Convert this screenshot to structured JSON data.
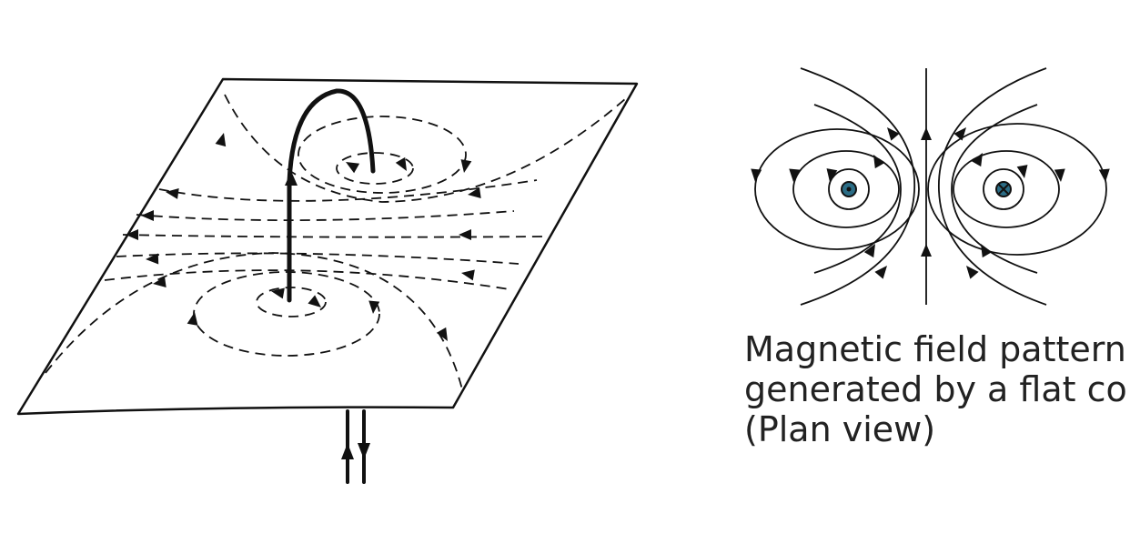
{
  "caption": {
    "lines": [
      "Magnetic field pattern",
      "generated by a flat coil",
      "(Plan view)"
    ]
  },
  "colors": {
    "ink": "#111111",
    "conductor_fill": "#2b6d86"
  },
  "icons": {
    "current_out": "dot-in-circle-icon",
    "current_in": "cross-in-circle-icon",
    "arrow": "arrowhead-icon"
  }
}
